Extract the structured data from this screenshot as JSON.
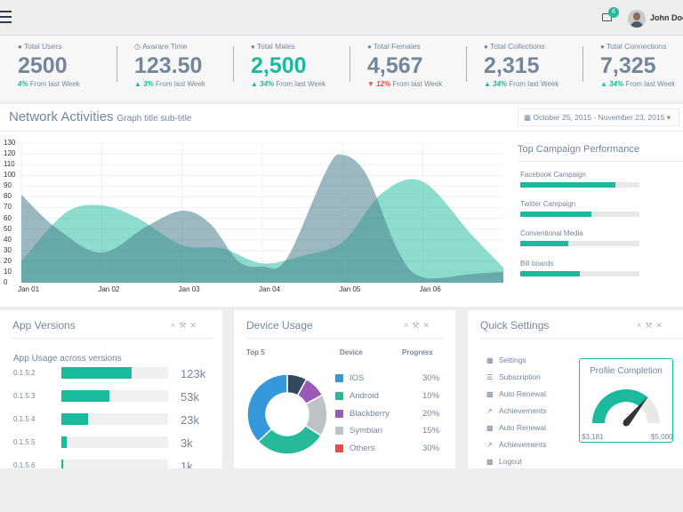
{
  "header": {
    "user_name": "John Doe",
    "mail_badge": "6"
  },
  "stats": [
    {
      "icon": "user-icon",
      "label": "Total Users",
      "value": "2500",
      "change": "4%",
      "change_dir": "up",
      "suffix": "From last Week",
      "highlight": false
    },
    {
      "icon": "clock-icon",
      "label": "Avarare Time",
      "value": "123.50",
      "change": "3%",
      "change_dir": "up",
      "suffix": "From last Week",
      "highlight": false
    },
    {
      "icon": "user-icon",
      "label": "Total Males",
      "value": "2,500",
      "change": "34%",
      "change_dir": "up",
      "suffix": "From last Week",
      "highlight": true
    },
    {
      "icon": "user-icon",
      "label": "Total Females",
      "value": "4,567",
      "change": "12%",
      "change_dir": "down",
      "suffix": "From last Week",
      "highlight": false
    },
    {
      "icon": "user-icon",
      "label": "Total Collections",
      "value": "2,315",
      "change": "34%",
      "change_dir": "up",
      "suffix": "From last Week",
      "highlight": false
    },
    {
      "icon": "user-icon",
      "label": "Total Connections",
      "value": "7,325",
      "change": "34%",
      "change_dir": "up",
      "suffix": "From last Week",
      "highlight": false
    }
  ],
  "network": {
    "title": "Network Activities",
    "subtitle": "Graph title sub-title",
    "date_range": "October 25, 2015 - November 23, 2015"
  },
  "chart_data": {
    "type": "area",
    "x": [
      "Jan 01",
      "Jan 02",
      "Jan 03",
      "Jan 04",
      "Jan 05",
      "Jan 06"
    ],
    "y_ticks": [
      0,
      10,
      20,
      30,
      40,
      50,
      60,
      70,
      80,
      90,
      100,
      110,
      120,
      130
    ],
    "ylim": [
      0,
      130
    ],
    "grid": true,
    "series": [
      {
        "color": "#1abb9c",
        "opacity": 0.5,
        "values": [
          [
            0,
            20
          ],
          [
            0.55,
            65
          ],
          [
            1,
            72
          ],
          [
            1.45,
            60
          ],
          [
            2,
            35
          ],
          [
            2.5,
            32
          ],
          [
            3,
            18
          ],
          [
            3.5,
            25
          ],
          [
            4,
            38
          ],
          [
            4.5,
            84
          ],
          [
            5,
            94
          ],
          [
            5.6,
            45
          ],
          [
            6,
            14
          ]
        ]
      },
      {
        "color": "#4a7e8e",
        "opacity": 0.55,
        "values": [
          [
            0,
            82
          ],
          [
            0.45,
            50
          ],
          [
            1,
            28
          ],
          [
            1.55,
            52
          ],
          [
            2,
            67
          ],
          [
            2.35,
            55
          ],
          [
            2.7,
            20
          ],
          [
            3,
            15
          ],
          [
            3.3,
            22
          ],
          [
            3.8,
            105
          ],
          [
            4,
            119
          ],
          [
            4.3,
            100
          ],
          [
            4.7,
            28
          ],
          [
            5,
            5
          ],
          [
            5.6,
            8
          ],
          [
            6,
            10
          ]
        ]
      }
    ]
  },
  "campaigns": {
    "title": "Top Campaign Performance",
    "items": [
      {
        "label": "Facebook Campaign",
        "value": 80
      },
      {
        "label": "Twitter Campaign",
        "value": 60
      },
      {
        "label": "Conventional Media",
        "value": 40
      },
      {
        "label": "Bill boards",
        "value": 50
      }
    ]
  },
  "app_versions": {
    "title": "App Versions",
    "subtitle": "App Usage across versions",
    "rows": [
      {
        "version": "0.1.5.2",
        "count": "123k",
        "fill": 66
      },
      {
        "version": "0.1.5.3",
        "count": "53k",
        "fill": 45
      },
      {
        "version": "0.1.5.4",
        "count": "23k",
        "fill": 25
      },
      {
        "version": "0.1.5.5",
        "count": "3k",
        "fill": 5
      },
      {
        "version": "0.1.5.6",
        "count": "1k",
        "fill": 2
      }
    ]
  },
  "device_usage": {
    "title": "Device Usage",
    "col_top": "Top 5",
    "col_device": "Device",
    "col_progress": "Progress",
    "devices": [
      {
        "name": "IOS",
        "percent": "30%",
        "value": 30,
        "color": "#3498db"
      },
      {
        "name": "Android",
        "percent": "10%",
        "value": 10,
        "color": "#26b99a"
      },
      {
        "name": "Blackberry",
        "percent": "20%",
        "value": 20,
        "color": "#9b59b6"
      },
      {
        "name": "Symbian",
        "percent": "15%",
        "value": 15,
        "color": "#bdc3c7"
      },
      {
        "name": "Others",
        "percent": "30%",
        "value": 30,
        "color": "#e74c3c"
      }
    ],
    "donut_slices": [
      {
        "value": 8,
        "color": "#34495e"
      },
      {
        "value": 9,
        "color": "#9b59b6"
      },
      {
        "value": 17,
        "color": "#bdc3c7"
      },
      {
        "value": 29,
        "color": "#26b99a"
      },
      {
        "value": 37,
        "color": "#3498db"
      }
    ]
  },
  "quick_settings": {
    "title": "Quick Settings",
    "items": [
      {
        "label": "Settings",
        "icon": "calendar-icon"
      },
      {
        "label": "Subscription",
        "icon": "list-icon"
      },
      {
        "label": "Auto Renewal",
        "icon": "bar-chart-icon"
      },
      {
        "label": "Achievements",
        "icon": "line-chart-icon"
      },
      {
        "label": "Auto Renewal",
        "icon": "bar-chart-icon"
      },
      {
        "label": "Achievements",
        "icon": "line-chart-icon"
      },
      {
        "label": "Logout",
        "icon": "bar-chart-icon"
      }
    ],
    "profile": {
      "title": "Profile Completion",
      "min": "$3,181",
      "max": "$5,000",
      "level": 0.72
    }
  }
}
